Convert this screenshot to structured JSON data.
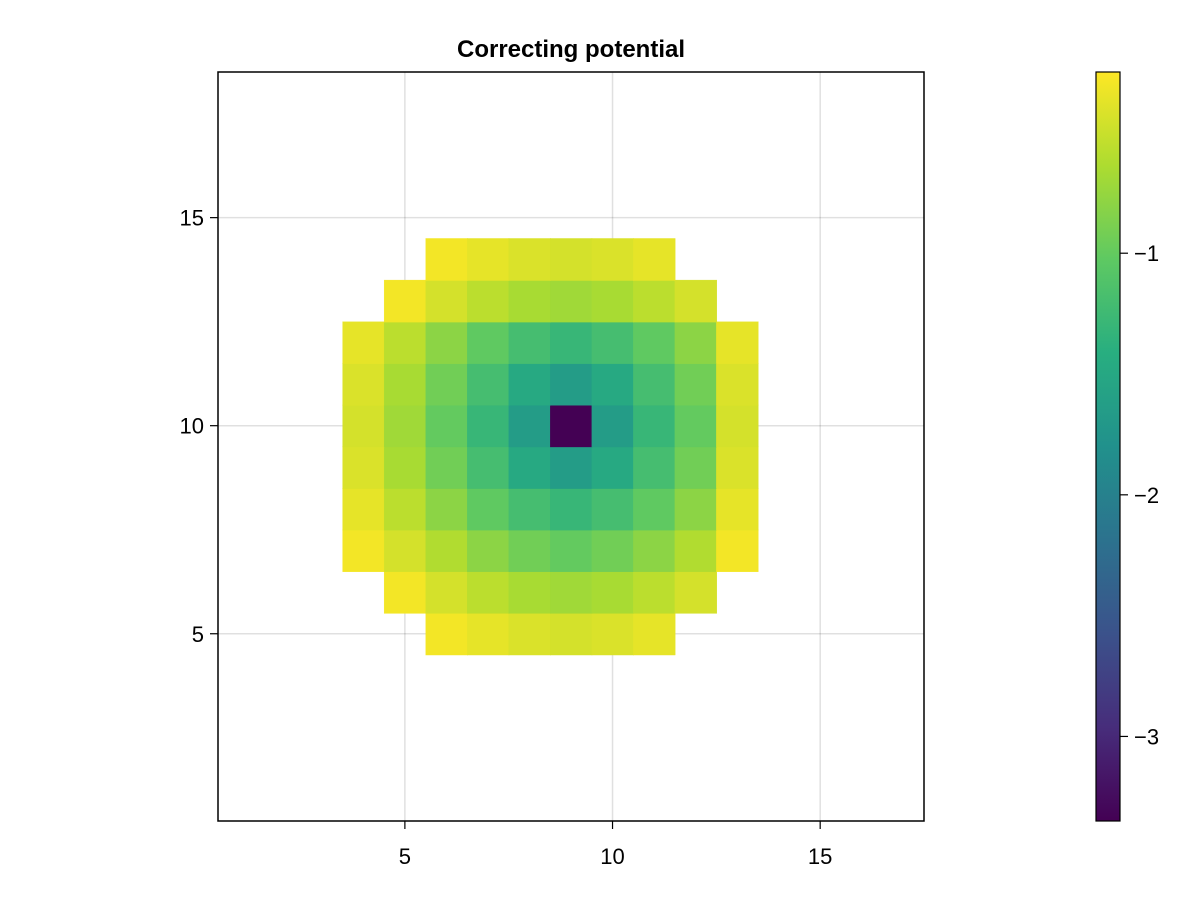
{
  "chart_data": {
    "type": "heatmap",
    "title": "Correcting potential",
    "xlabel": "",
    "ylabel": "",
    "x_range": [
      0.5,
      17.5
    ],
    "y_range": [
      0.5,
      18.5
    ],
    "x_ticks": [
      5,
      10,
      15
    ],
    "x_tick_labels": [
      "5",
      "10",
      "15"
    ],
    "y_ticks": [
      5,
      10,
      15
    ],
    "y_tick_labels": [
      "5",
      "10",
      "15"
    ],
    "grid": true,
    "colormap": "viridis",
    "color_range": [
      -3.35,
      -0.25
    ],
    "colorbar_ticks": [
      -1,
      -2,
      -3
    ],
    "colorbar_tick_labels": [
      "−1",
      "−2",
      "−3"
    ],
    "x": [
      4,
      5,
      6,
      7,
      8,
      9,
      10,
      11,
      12,
      13
    ],
    "y": [
      5,
      6,
      7,
      8,
      9,
      10,
      11,
      12,
      13,
      14
    ],
    "values": [
      [
        null,
        null,
        -0.3,
        -0.36,
        -0.42,
        -0.45,
        -0.42,
        -0.36,
        null,
        null
      ],
      [
        null,
        -0.3,
        -0.45,
        -0.57,
        -0.66,
        -0.7,
        -0.66,
        -0.57,
        -0.45,
        null
      ],
      [
        -0.3,
        -0.45,
        -0.62,
        -0.8,
        -0.93,
        -1.0,
        -0.93,
        -0.8,
        -0.62,
        -0.3
      ],
      [
        -0.36,
        -0.57,
        -0.8,
        -1.02,
        -1.2,
        -1.3,
        -1.2,
        -1.02,
        -0.8,
        -0.36
      ],
      [
        -0.42,
        -0.66,
        -0.93,
        -1.2,
        -1.48,
        -1.65,
        -1.48,
        -1.2,
        -0.93,
        -0.42
      ],
      [
        -0.45,
        -0.7,
        -1.0,
        -1.3,
        -1.65,
        -3.35,
        -1.65,
        -1.3,
        -1.0,
        -0.45
      ],
      [
        -0.42,
        -0.66,
        -0.93,
        -1.2,
        -1.48,
        -1.65,
        -1.48,
        -1.2,
        -0.93,
        -0.42
      ],
      [
        -0.36,
        -0.57,
        -0.8,
        -1.02,
        -1.2,
        -1.3,
        -1.2,
        -1.02,
        -0.8,
        -0.36
      ],
      [
        null,
        -0.3,
        -0.45,
        -0.57,
        -0.66,
        -0.7,
        -0.66,
        -0.57,
        -0.45,
        null
      ],
      [
        null,
        null,
        -0.3,
        -0.36,
        -0.42,
        -0.45,
        -0.42,
        -0.36,
        null,
        null
      ]
    ]
  }
}
